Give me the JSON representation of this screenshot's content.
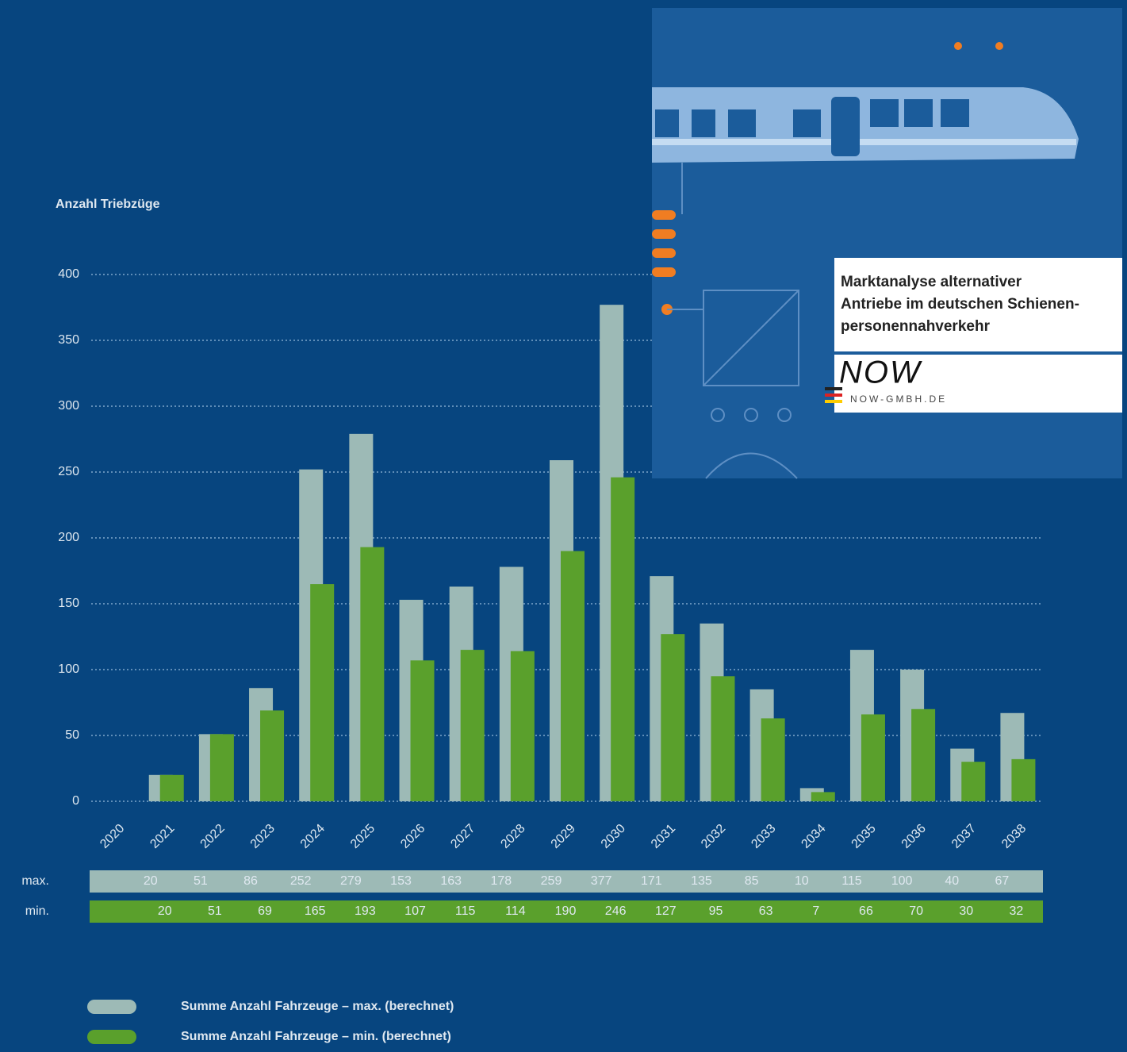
{
  "chart_data": {
    "type": "bar",
    "y_label": "Anzahl Triebzüge",
    "categories": [
      "2020",
      "2021",
      "2022",
      "2023",
      "2024",
      "2025",
      "2026",
      "2027",
      "2028",
      "2029",
      "2030",
      "2031",
      "2032",
      "2033",
      "2034",
      "2035",
      "2036",
      "2037",
      "2038"
    ],
    "series": [
      {
        "name": "Summe Anzahl Fahrzeuge – max. (berechnet)",
        "row_label": "max.",
        "color": "#9dbab6",
        "values": [
          null,
          20,
          51,
          86,
          252,
          279,
          153,
          163,
          178,
          259,
          377,
          171,
          135,
          85,
          10,
          115,
          100,
          40,
          67
        ]
      },
      {
        "name": "Summe Anzahl Fahrzeuge – min. (berechnet)",
        "row_label": "min.",
        "color": "#5aa02c",
        "values": [
          null,
          20,
          51,
          69,
          165,
          193,
          107,
          115,
          114,
          190,
          246,
          127,
          95,
          63,
          7,
          66,
          70,
          30,
          32
        ]
      }
    ],
    "ylim": [
      0,
      400
    ],
    "yticks": [
      0,
      50,
      100,
      150,
      200,
      250,
      300,
      350,
      400
    ],
    "grid": true
  },
  "inset": {
    "title_lines": [
      "Marktanalyse alternativer",
      "Antriebe im deutschen Schienen-",
      "personennahverkehr"
    ],
    "logo": "NOW",
    "url": "NOW-GMBH.DE"
  }
}
